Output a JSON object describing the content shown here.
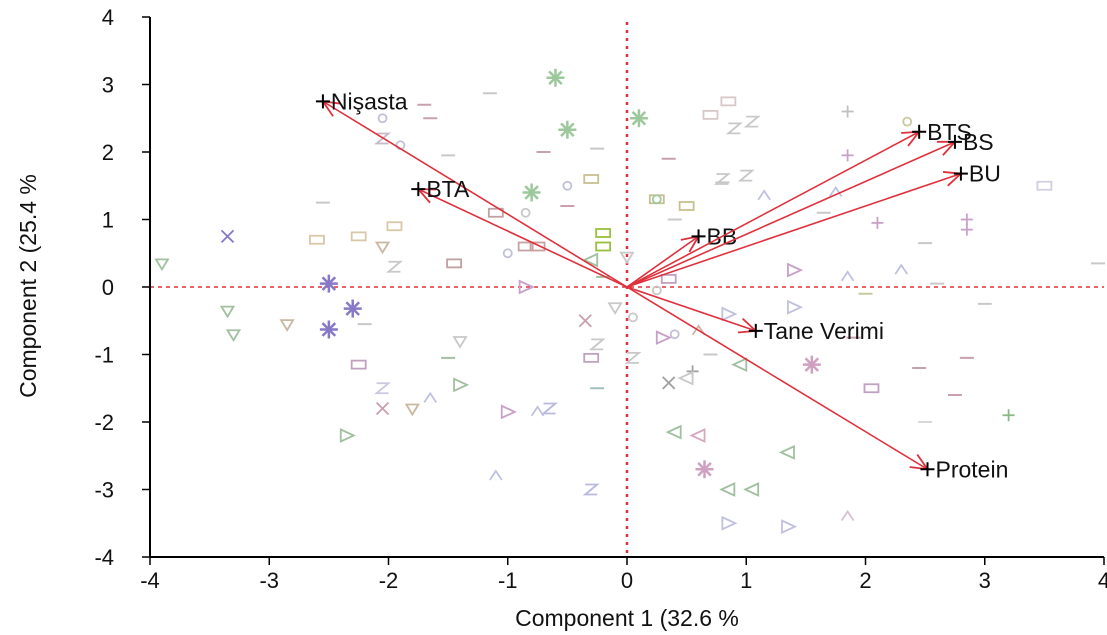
{
  "chart_data": {
    "type": "scatter",
    "subtype": "biplot",
    "title": "",
    "xlabel": "Component 1  (32.6 %",
    "ylabel": "Component 2  (25.4 %",
    "xlim": [
      -4,
      4
    ],
    "ylim": [
      -4,
      4
    ],
    "xticks": [
      -4,
      -3,
      -2,
      -1,
      0,
      1,
      2,
      3,
      4
    ],
    "yticks": [
      -4,
      -3,
      -2,
      -1,
      0,
      1,
      2,
      3,
      4
    ],
    "reference_lines": {
      "x": 0,
      "y": 0,
      "color": "#e0303c",
      "style": "dotted"
    },
    "vector_color": "#e0303c",
    "vectors": [
      {
        "label": "Nişasta",
        "x": -2.55,
        "y": 2.75
      },
      {
        "label": "BTA",
        "x": -1.75,
        "y": 1.45
      },
      {
        "label": "BB",
        "x": 0.6,
        "y": 0.75
      },
      {
        "label": "BTS",
        "x": 2.45,
        "y": 2.3
      },
      {
        "label": "BS",
        "x": 2.75,
        "y": 2.15
      },
      {
        "label": "BU",
        "x": 2.8,
        "y": 1.68
      },
      {
        "label": "Tane Verimi",
        "x": 1.08,
        "y": -0.65
      },
      {
        "label": "Protein",
        "x": 2.52,
        "y": -2.7
      }
    ],
    "observations": [
      {
        "x": -2.5,
        "y": 0.05,
        "m": "*",
        "c": "#8878c8"
      },
      {
        "x": -2.3,
        "y": -0.32,
        "m": "*",
        "c": "#8878c8"
      },
      {
        "x": -2.5,
        "y": -0.63,
        "m": "*",
        "c": "#8878c8"
      },
      {
        "x": -0.6,
        "y": 3.1,
        "m": "*",
        "c": "#9cc89c"
      },
      {
        "x": -0.5,
        "y": 2.33,
        "m": "*",
        "c": "#9cc89c"
      },
      {
        "x": -0.8,
        "y": 1.4,
        "m": "*",
        "c": "#9cc89c"
      },
      {
        "x": 0.1,
        "y": 2.5,
        "m": "*",
        "c": "#9cc89c"
      },
      {
        "x": 0.65,
        "y": -2.7,
        "m": "*",
        "c": "#d0a0c0"
      },
      {
        "x": 1.55,
        "y": -1.15,
        "m": "*",
        "c": "#d0a0c0"
      },
      {
        "x": -3.35,
        "y": 0.75,
        "m": "x",
        "c": "#8878c8"
      },
      {
        "x": -2.05,
        "y": -1.8,
        "m": "x",
        "c": "#c8a0b0"
      },
      {
        "x": -0.35,
        "y": -0.5,
        "m": "x",
        "c": "#c8a0b0"
      },
      {
        "x": 0.35,
        "y": -1.42,
        "m": "x",
        "c": "#a0a0a0"
      },
      {
        "x": 1.85,
        "y": 2.6,
        "m": "+",
        "c": "#c0c0c0"
      },
      {
        "x": 1.85,
        "y": 1.95,
        "m": "+",
        "c": "#c8a0c8"
      },
      {
        "x": 2.85,
        "y": 1.0,
        "m": "+",
        "c": "#c8a0c8"
      },
      {
        "x": 2.85,
        "y": 0.85,
        "m": "+",
        "c": "#c8a0c8"
      },
      {
        "x": 2.1,
        "y": 0.95,
        "m": "+",
        "c": "#c8a0c8"
      },
      {
        "x": 0.55,
        "y": -1.25,
        "m": "+",
        "c": "#a0a0a0"
      },
      {
        "x": 3.2,
        "y": -1.9,
        "m": "+",
        "c": "#88b888"
      },
      {
        "x": -1.1,
        "y": 1.1,
        "m": "R",
        "c": "#c0a0a0"
      },
      {
        "x": -1.45,
        "y": 0.35,
        "m": "R",
        "c": "#c0a0a0"
      },
      {
        "x": -0.85,
        "y": 0.6,
        "m": "R",
        "c": "#c8a0a0"
      },
      {
        "x": -0.75,
        "y": 0.6,
        "m": "R",
        "c": "#c8a0a0"
      },
      {
        "x": 0.5,
        "y": 1.2,
        "m": "R",
        "c": "#c8c090"
      },
      {
        "x": 0.25,
        "y": 1.3,
        "m": "R",
        "c": "#c8c090"
      },
      {
        "x": 0.85,
        "y": 2.75,
        "m": "R",
        "c": "#d8c8c8"
      },
      {
        "x": 0.7,
        "y": 2.55,
        "m": "R",
        "c": "#d8c8c8"
      },
      {
        "x": 3.5,
        "y": 1.5,
        "m": "R",
        "c": "#d0d0e0"
      },
      {
        "x": -0.3,
        "y": -1.05,
        "m": "R",
        "c": "#c0a0c0"
      },
      {
        "x": -2.25,
        "y": -1.15,
        "m": "R",
        "c": "#c0a0c0"
      },
      {
        "x": -2.6,
        "y": 0.7,
        "m": "R",
        "c": "#d8c8a8"
      },
      {
        "x": -2.25,
        "y": 0.75,
        "m": "R",
        "c": "#d8c8a8"
      },
      {
        "x": -1.95,
        "y": 0.9,
        "m": "R",
        "c": "#d8c8a8"
      },
      {
        "x": 0.35,
        "y": 0.12,
        "m": "R",
        "c": "#c0a0c0"
      },
      {
        "x": 2.05,
        "y": -1.5,
        "m": "R",
        "c": "#c0a0c0"
      },
      {
        "x": -0.2,
        "y": 0.8,
        "m": "R",
        "c": "#98c040"
      },
      {
        "x": -0.2,
        "y": 0.6,
        "m": "R",
        "c": "#98c040"
      },
      {
        "x": -0.3,
        "y": 1.6,
        "m": "R",
        "c": "#c8c090"
      },
      {
        "x": 0.25,
        "y": 1.3,
        "m": "o",
        "c": "#a0c8a0"
      },
      {
        "x": 2.35,
        "y": 2.45,
        "m": "o",
        "c": "#c8c8a0"
      },
      {
        "x": -1.9,
        "y": 2.1,
        "m": "o",
        "c": "#c0c0d8"
      },
      {
        "x": -2.05,
        "y": 2.5,
        "m": "o",
        "c": "#c0c0d8"
      },
      {
        "x": -0.85,
        "y": 1.1,
        "m": "o",
        "c": "#c8c8c8"
      },
      {
        "x": 0.05,
        "y": -0.45,
        "m": "o",
        "c": "#c8c8c8"
      },
      {
        "x": 0.25,
        "y": -0.05,
        "m": "o",
        "c": "#c8c8c8"
      },
      {
        "x": -0.5,
        "y": 1.5,
        "m": "o",
        "c": "#c0c0d8"
      },
      {
        "x": -1.0,
        "y": 0.5,
        "m": "o",
        "c": "#c0c0d8"
      },
      {
        "x": 0.4,
        "y": -0.7,
        "m": "o",
        "c": "#c0c0d8"
      },
      {
        "x": -3.9,
        "y": 0.35,
        "m": "v",
        "c": "#a0c0a0"
      },
      {
        "x": -3.35,
        "y": -0.35,
        "m": "v",
        "c": "#a0c0a0"
      },
      {
        "x": -3.3,
        "y": -0.7,
        "m": "v",
        "c": "#a0c0a0"
      },
      {
        "x": -2.85,
        "y": -0.55,
        "m": "v",
        "c": "#c8b8a0"
      },
      {
        "x": -2.05,
        "y": 0.6,
        "m": "v",
        "c": "#c8b8a0"
      },
      {
        "x": -1.8,
        "y": -1.8,
        "m": "v",
        "c": "#c8b8a0"
      },
      {
        "x": 0.0,
        "y": 0.45,
        "m": "v",
        "c": "#c8c8c8"
      },
      {
        "x": -0.1,
        "y": -0.3,
        "m": "v",
        "c": "#c8c8c8"
      },
      {
        "x": -1.4,
        "y": -0.8,
        "m": "v",
        "c": "#c8c8c8"
      },
      {
        "x": -2.35,
        "y": -2.2,
        "m": ">",
        "c": "#a0c0a0"
      },
      {
        "x": -1.4,
        "y": -1.45,
        "m": ">",
        "c": "#a0c0a0"
      },
      {
        "x": 0.85,
        "y": -3.5,
        "m": ">",
        "c": "#c0c0e0"
      },
      {
        "x": 1.35,
        "y": -3.55,
        "m": ">",
        "c": "#c0c0e0"
      },
      {
        "x": 0.85,
        "y": -0.4,
        "m": ">",
        "c": "#c0c0e0"
      },
      {
        "x": 1.4,
        "y": -0.3,
        "m": ">",
        "c": "#c0c0e0"
      },
      {
        "x": -1.0,
        "y": -1.85,
        "m": ">",
        "c": "#c8a0c8"
      },
      {
        "x": -0.85,
        "y": 0.0,
        "m": ">",
        "c": "#c8a0c8"
      },
      {
        "x": 0.3,
        "y": -0.75,
        "m": ">",
        "c": "#c8a0c8"
      },
      {
        "x": 1.4,
        "y": 0.25,
        "m": ">",
        "c": "#c8a0c8"
      },
      {
        "x": 0.4,
        "y": -2.15,
        "m": "<",
        "c": "#a0c0a0"
      },
      {
        "x": 0.85,
        "y": -3.0,
        "m": "<",
        "c": "#a0c0a0"
      },
      {
        "x": 1.05,
        "y": -3.0,
        "m": "<",
        "c": "#a0c0a0"
      },
      {
        "x": 1.35,
        "y": -2.45,
        "m": "<",
        "c": "#a0c0a0"
      },
      {
        "x": 0.95,
        "y": -1.15,
        "m": "<",
        "c": "#a0c0a0"
      },
      {
        "x": 0.6,
        "y": -2.2,
        "m": "<",
        "c": "#d8a8c0"
      },
      {
        "x": 0.5,
        "y": -1.35,
        "m": "<",
        "c": "#c8c8c8"
      },
      {
        "x": -0.3,
        "y": 0.4,
        "m": "<",
        "c": "#a0c0a0"
      },
      {
        "x": -1.65,
        "y": -1.65,
        "m": "^",
        "c": "#c0c0e0"
      },
      {
        "x": -1.1,
        "y": -2.8,
        "m": "^",
        "c": "#c0c0e0"
      },
      {
        "x": 1.85,
        "y": -3.4,
        "m": "^",
        "c": "#d8c0d0"
      },
      {
        "x": 1.15,
        "y": 1.35,
        "m": "^",
        "c": "#c0c0e0"
      },
      {
        "x": 1.75,
        "y": 1.4,
        "m": "^",
        "c": "#c0c0e0"
      },
      {
        "x": 1.85,
        "y": 0.15,
        "m": "^",
        "c": "#c0c0e0"
      },
      {
        "x": 2.3,
        "y": 0.25,
        "m": "^",
        "c": "#c0c0e0"
      },
      {
        "x": -0.75,
        "y": -1.85,
        "m": "^",
        "c": "#c0c0e0"
      },
      {
        "x": 0.6,
        "y": -0.65,
        "m": "^",
        "c": "#c8b8a0"
      },
      {
        "x": -2.05,
        "y": 2.2,
        "m": "Z",
        "c": "#c8b8c8"
      },
      {
        "x": -2.05,
        "y": -1.5,
        "m": "Z",
        "c": "#c8c8e0"
      },
      {
        "x": -0.65,
        "y": -1.8,
        "m": "Z",
        "c": "#b8b8e0"
      },
      {
        "x": -0.3,
        "y": -3.0,
        "m": "Z",
        "c": "#b8b8e0"
      },
      {
        "x": 0.9,
        "y": 2.35,
        "m": "Z",
        "c": "#c8c8c8"
      },
      {
        "x": 1.05,
        "y": 2.45,
        "m": "Z",
        "c": "#c8c8c8"
      },
      {
        "x": -1.95,
        "y": 0.3,
        "m": "Z",
        "c": "#c8c8c8"
      },
      {
        "x": 0.8,
        "y": 1.6,
        "m": "Z",
        "c": "#c8c8c8"
      },
      {
        "x": 1.0,
        "y": 1.65,
        "m": "Z",
        "c": "#c8c8c8"
      },
      {
        "x": -0.25,
        "y": -0.85,
        "m": "Z",
        "c": "#c8c8c8"
      },
      {
        "x": 0.05,
        "y": -1.05,
        "m": "Z",
        "c": "#c8c8c8"
      },
      {
        "x": -1.7,
        "y": 2.7,
        "m": "-",
        "c": "#c8a0b0"
      },
      {
        "x": -1.65,
        "y": 2.5,
        "m": "-",
        "c": "#c8a0b0"
      },
      {
        "x": -1.15,
        "y": 2.87,
        "m": "-",
        "c": "#c8c8c8"
      },
      {
        "x": -1.5,
        "y": 1.95,
        "m": "-",
        "c": "#c8c8c8"
      },
      {
        "x": 3.0,
        "y": -0.25,
        "m": "-",
        "c": "#c8c8c8"
      },
      {
        "x": 1.9,
        "y": -0.75,
        "m": "-",
        "c": "#c8a0b0"
      },
      {
        "x": 2.85,
        "y": -1.05,
        "m": "-",
        "c": "#c8a0b0"
      },
      {
        "x": 2.45,
        "y": -1.2,
        "m": "-",
        "c": "#c8a0b0"
      },
      {
        "x": 2.75,
        "y": -1.6,
        "m": "-",
        "c": "#c8a0b0"
      },
      {
        "x": 2.5,
        "y": -2.0,
        "m": "-",
        "c": "#d8d8d8"
      },
      {
        "x": -0.25,
        "y": 2.05,
        "m": "-",
        "c": "#c8c8c8"
      },
      {
        "x": -0.7,
        "y": 2.0,
        "m": "-",
        "c": "#c8a0b0"
      },
      {
        "x": -0.5,
        "y": 1.2,
        "m": "-",
        "c": "#c8a0b0"
      },
      {
        "x": 0.35,
        "y": 1.9,
        "m": "-",
        "c": "#c8a0b0"
      },
      {
        "x": 0.8,
        "y": 1.55,
        "m": "-",
        "c": "#c8c8c8"
      },
      {
        "x": 1.65,
        "y": 1.1,
        "m": "-",
        "c": "#c8c8c8"
      },
      {
        "x": 2.5,
        "y": 0.65,
        "m": "-",
        "c": "#c8c8c8"
      },
      {
        "x": 2.6,
        "y": 0.05,
        "m": "-",
        "c": "#c8c8c8"
      },
      {
        "x": 3.95,
        "y": 0.35,
        "m": "-",
        "c": "#c8c8c8"
      },
      {
        "x": -2.55,
        "y": 1.25,
        "m": "-",
        "c": "#c8c8c8"
      },
      {
        "x": 0.4,
        "y": 1.0,
        "m": "-",
        "c": "#c8c8c8"
      },
      {
        "x": 0.7,
        "y": -1.0,
        "m": "-",
        "c": "#c8c8c8"
      },
      {
        "x": -0.25,
        "y": -1.5,
        "m": "-",
        "c": "#a0c0c0"
      },
      {
        "x": 2.0,
        "y": -0.1,
        "m": "-",
        "c": "#c8c8a0"
      },
      {
        "x": -2.2,
        "y": -0.55,
        "m": "-",
        "c": "#c8c8c8"
      },
      {
        "x": -1.5,
        "y": -1.05,
        "m": "-",
        "c": "#a0c0a0"
      },
      {
        "x": -0.2,
        "y": 0.15,
        "m": "-",
        "c": "#a0c0a0"
      }
    ]
  }
}
